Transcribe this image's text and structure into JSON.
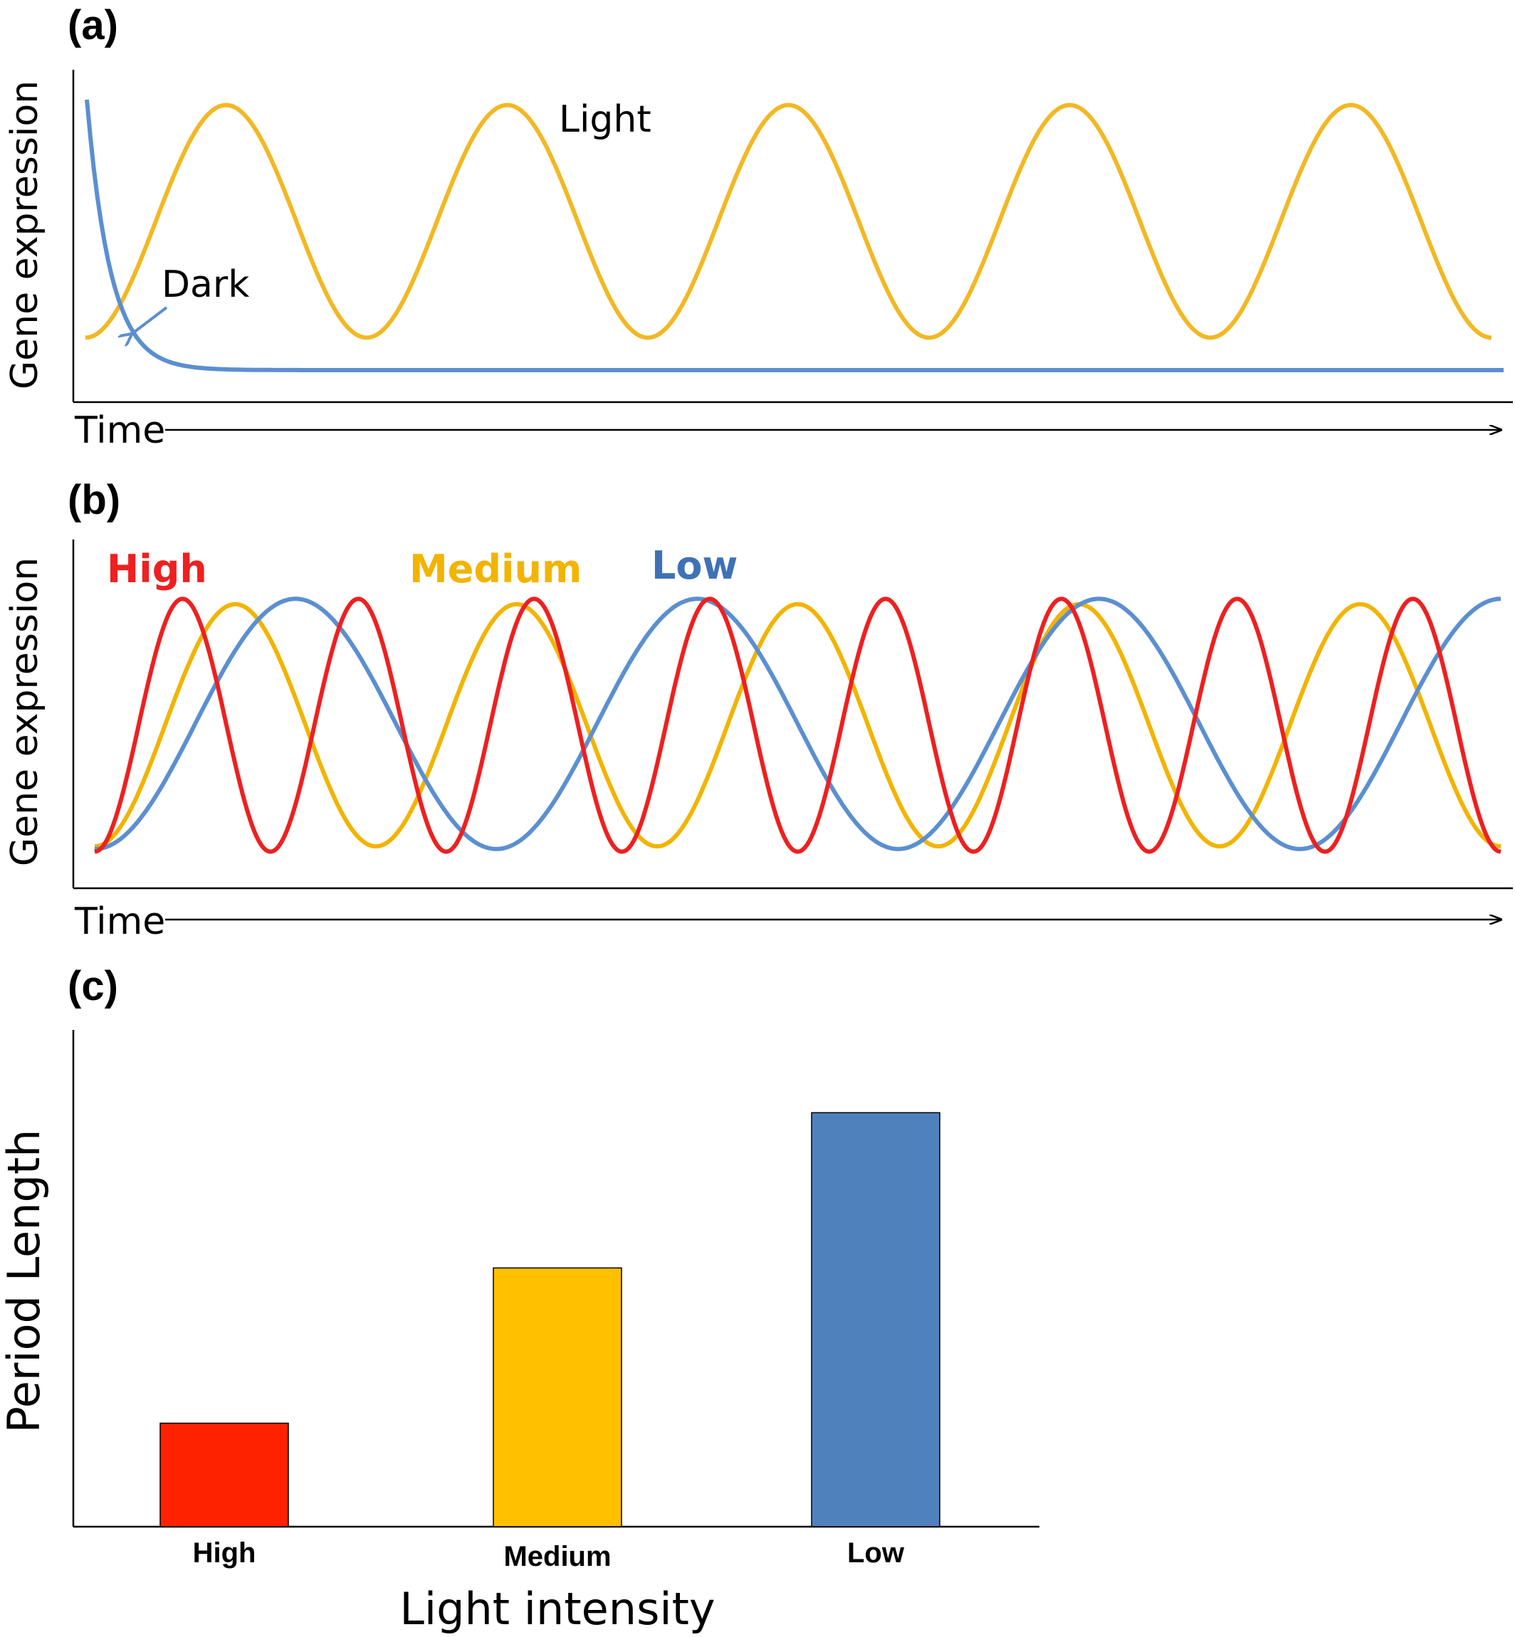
{
  "panels": {
    "a": {
      "letter": "(a)",
      "ylabel": "Gene expression",
      "xlabel": "Time",
      "annotations": {
        "light": "Light",
        "dark": "Dark"
      }
    },
    "b": {
      "letter": "(b)",
      "ylabel": "Gene expression",
      "xlabel": "Time",
      "legend": [
        {
          "label": "High",
          "color": "#ee2020"
        },
        {
          "label": "Medium",
          "color": "#f2b400"
        },
        {
          "label": "Low",
          "color": "#3f72b5"
        }
      ]
    },
    "c": {
      "letter": "(c)",
      "ylabel": "Period Length",
      "xlabel": "Light intensity"
    }
  },
  "chart_data": [
    {
      "type": "line",
      "panel": "a",
      "xlabel": "Time",
      "ylabel": "Gene expression",
      "ylim": [
        0,
        1
      ],
      "series": [
        {
          "name": "Light",
          "color": "#f2b824",
          "kind": "oscillation",
          "cycles": 5,
          "min": 0.12,
          "max": 0.98
        },
        {
          "name": "Dark",
          "color": "#5b8fd0",
          "kind": "decay",
          "start": 1.0,
          "end": 0.0
        }
      ]
    },
    {
      "type": "line",
      "panel": "b",
      "xlabel": "Time",
      "ylabel": "Gene expression",
      "ylim": [
        0,
        1
      ],
      "series": [
        {
          "name": "High",
          "color": "#ee2020",
          "kind": "oscillation",
          "cycles": 8,
          "min": 0.03,
          "max": 0.97
        },
        {
          "name": "Medium",
          "color": "#f2b400",
          "kind": "oscillation",
          "cycles": 5,
          "min": 0.05,
          "max": 0.95
        },
        {
          "name": "Low",
          "color": "#5b8fd0",
          "kind": "oscillation",
          "cycles": 3.5,
          "min": 0.04,
          "max": 0.97
        }
      ]
    },
    {
      "type": "bar",
      "panel": "c",
      "categories": [
        "High",
        "Medium",
        "Low"
      ],
      "values": [
        1.0,
        2.5,
        4.0
      ],
      "colors": [
        "#ff2200",
        "#ffc000",
        "#4f81bd"
      ],
      "xlabel": "Light intensity",
      "ylabel": "Period Length",
      "ylim": [
        0,
        4.8
      ]
    }
  ]
}
